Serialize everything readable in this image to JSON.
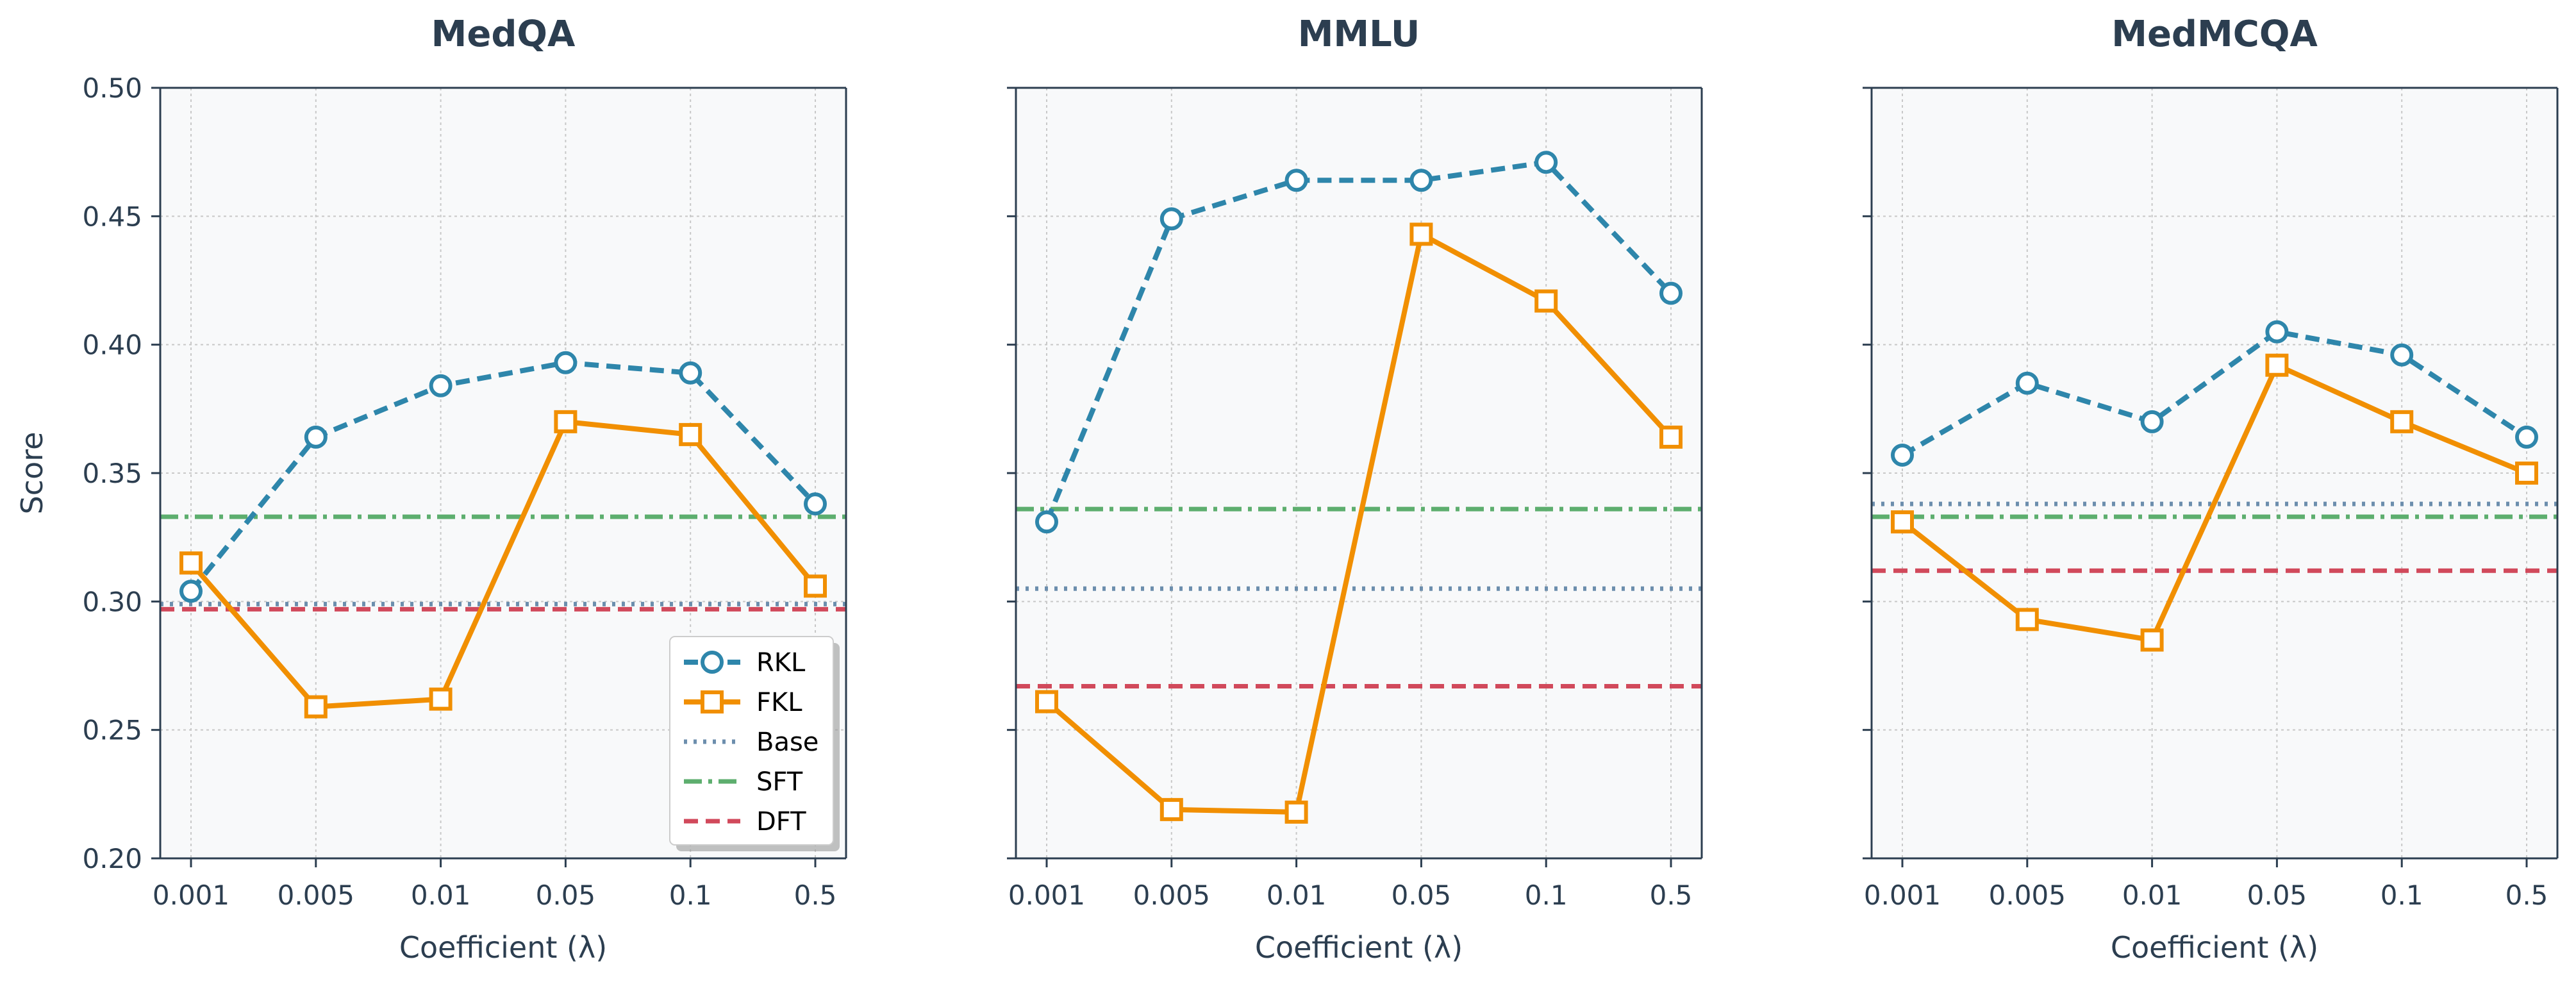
{
  "colors": {
    "rkl": "#2E86AB",
    "fkl": "#F18F01",
    "base": "#6C8EAD",
    "sft": "#5DAE6E",
    "dft": "#D1495B",
    "plot_bg": "#F8F9FA",
    "axis": "#2C3E50",
    "text": "#2C3E50",
    "grid": "#C8C8C8"
  },
  "chart_data": [
    {
      "type": "line",
      "title": "MedQA",
      "xlabel": "Coefficient (λ)",
      "ylabel": "Score",
      "categories": [
        "0.001",
        "0.005",
        "0.01",
        "0.05",
        "0.1",
        "0.5"
      ],
      "ylim": [
        0.2,
        0.5
      ],
      "yticks": [
        "0.20",
        "0.25",
        "0.30",
        "0.35",
        "0.40",
        "0.45",
        "0.50"
      ],
      "grid": true,
      "show_yticklabels": true,
      "series": [
        {
          "name": "RKL",
          "values": [
            0.304,
            0.364,
            0.384,
            0.393,
            0.389,
            0.338
          ]
        },
        {
          "name": "FKL",
          "values": [
            0.315,
            0.259,
            0.262,
            0.37,
            0.365,
            0.306
          ]
        }
      ],
      "references": [
        {
          "name": "Base",
          "value": 0.299
        },
        {
          "name": "SFT",
          "value": 0.333
        },
        {
          "name": "DFT",
          "value": 0.297
        }
      ],
      "legend": {
        "placement": "lower-right",
        "entries": [
          "RKL",
          "FKL",
          "Base",
          "SFT",
          "DFT"
        ]
      }
    },
    {
      "type": "line",
      "title": "MMLU",
      "xlabel": "Coefficient (λ)",
      "ylabel": "",
      "categories": [
        "0.001",
        "0.005",
        "0.01",
        "0.05",
        "0.1",
        "0.5"
      ],
      "ylim": [
        0.2,
        0.5
      ],
      "yticks": [
        "0.20",
        "0.25",
        "0.30",
        "0.35",
        "0.40",
        "0.45",
        "0.50"
      ],
      "grid": true,
      "show_yticklabels": false,
      "series": [
        {
          "name": "RKL",
          "values": [
            0.331,
            0.449,
            0.464,
            0.464,
            0.471,
            0.42
          ]
        },
        {
          "name": "FKL",
          "values": [
            0.261,
            0.219,
            0.218,
            0.443,
            0.417,
            0.364
          ]
        }
      ],
      "references": [
        {
          "name": "Base",
          "value": 0.305
        },
        {
          "name": "SFT",
          "value": 0.336
        },
        {
          "name": "DFT",
          "value": 0.267
        }
      ]
    },
    {
      "type": "line",
      "title": "MedMCQA",
      "xlabel": "Coefficient (λ)",
      "ylabel": "",
      "categories": [
        "0.001",
        "0.005",
        "0.01",
        "0.05",
        "0.1",
        "0.5"
      ],
      "ylim": [
        0.2,
        0.5
      ],
      "yticks": [
        "0.20",
        "0.25",
        "0.30",
        "0.35",
        "0.40",
        "0.45",
        "0.50"
      ],
      "grid": true,
      "show_yticklabels": false,
      "series": [
        {
          "name": "RKL",
          "values": [
            0.357,
            0.385,
            0.37,
            0.405,
            0.396,
            0.364
          ]
        },
        {
          "name": "FKL",
          "values": [
            0.331,
            0.293,
            0.285,
            0.392,
            0.37,
            0.35
          ]
        }
      ],
      "references": [
        {
          "name": "Base",
          "value": 0.338
        },
        {
          "name": "SFT",
          "value": 0.333
        },
        {
          "name": "DFT",
          "value": 0.312
        }
      ]
    }
  ]
}
